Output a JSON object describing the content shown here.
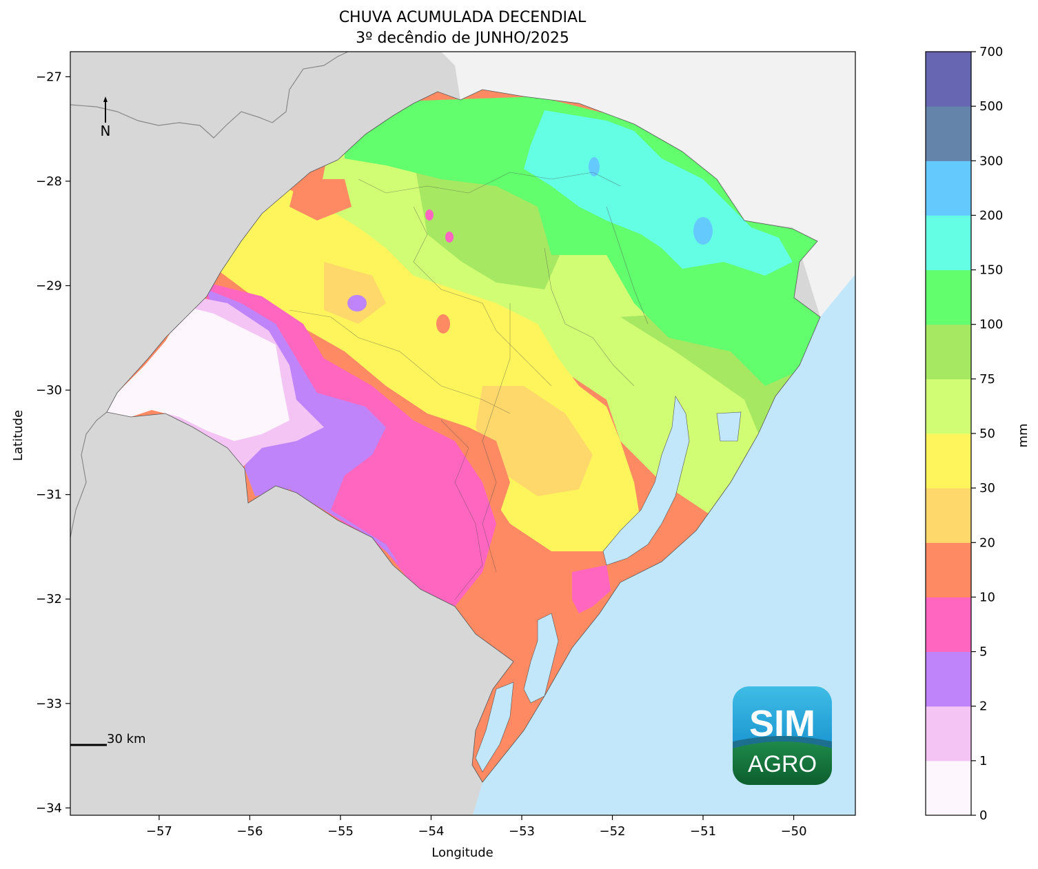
{
  "title": {
    "line1": "CHUVA ACUMULADA DECENDIAL",
    "line2": "3º decêndio de JUNHO/2025"
  },
  "axes": {
    "xlabel": "Longitude",
    "ylabel": "Latitude",
    "xlim": [
      -57.98,
      -49.32
    ],
    "ylim": [
      -34.07,
      -26.76
    ],
    "xticks": [
      -57,
      -56,
      -55,
      -54,
      -53,
      -52,
      -51,
      -50
    ],
    "yticks": [
      -27,
      -28,
      -29,
      -30,
      -31,
      -32,
      -33,
      -34
    ],
    "xtick_labels": [
      "−57",
      "−56",
      "−55",
      "−54",
      "−53",
      "−52",
      "−51",
      "−50"
    ],
    "ytick_labels": [
      "−27",
      "−28",
      "−29",
      "−30",
      "−31",
      "−32",
      "−33",
      "−34"
    ]
  },
  "north_arrow": {
    "label": "N"
  },
  "scale_bar": {
    "label": "30 km"
  },
  "logo": {
    "line1": "SIM",
    "line2": "AGRO"
  },
  "colorbar": {
    "label": "mm",
    "bounds": [
      "0",
      "1",
      "2",
      "5",
      "10",
      "20",
      "30",
      "50",
      "75",
      "100",
      "150",
      "200",
      "300",
      "500",
      "700"
    ],
    "colors": [
      "#fdf6fd",
      "#f4c4f4",
      "#c084fa",
      "#fe66c0",
      "#fe8a64",
      "#fed86a",
      "#fef55c",
      "#d0fd74",
      "#a6e862",
      "#62fe6e",
      "#64fee4",
      "#64cafe",
      "#6484aa",
      "#6666b2"
    ]
  },
  "map_colors": {
    "neighbor_land": "#d7d7d7",
    "north_land": "#f2f2f2",
    "ocean": "#c2e6fa"
  },
  "chart_data": {
    "type": "map-filled-contour",
    "region": "Rio Grande do Sul, Brazil",
    "variable": "accumulated rainfall (mm)",
    "patches": [
      {
        "lon": -56.1,
        "lat": -30.0,
        "class_mm": "0-1"
      },
      {
        "lon": -55.4,
        "lat": -30.6,
        "class_mm": "2-5"
      },
      {
        "lon": -55.0,
        "lat": -31.1,
        "class_mm": "2-5"
      },
      {
        "lon": -54.1,
        "lat": -31.4,
        "class_mm": "5-10"
      },
      {
        "lon": -52.2,
        "lat": -32.0,
        "class_mm": "5-10"
      },
      {
        "lon": -53.0,
        "lat": -32.7,
        "class_mm": "10-20"
      },
      {
        "lon": -54.8,
        "lat": -29.8,
        "class_mm": "10-20"
      },
      {
        "lon": -53.3,
        "lat": -30.6,
        "class_mm": "20-30"
      },
      {
        "lon": -55.2,
        "lat": -28.9,
        "class_mm": "30-50"
      },
      {
        "lon": -53.7,
        "lat": -29.6,
        "class_mm": "30-50"
      },
      {
        "lon": -52.5,
        "lat": -30.9,
        "class_mm": "30-50"
      },
      {
        "lon": -53.0,
        "lat": -28.8,
        "class_mm": "50-75"
      },
      {
        "lon": -51.2,
        "lat": -30.2,
        "class_mm": "50-75"
      },
      {
        "lon": -52.4,
        "lat": -28.3,
        "class_mm": "75-100"
      },
      {
        "lon": -51.6,
        "lat": -28.5,
        "class_mm": "100-150"
      },
      {
        "lon": -51.4,
        "lat": -27.7,
        "class_mm": "150-200"
      },
      {
        "lon": -50.4,
        "lat": -28.3,
        "class_mm": "150-200"
      }
    ]
  }
}
